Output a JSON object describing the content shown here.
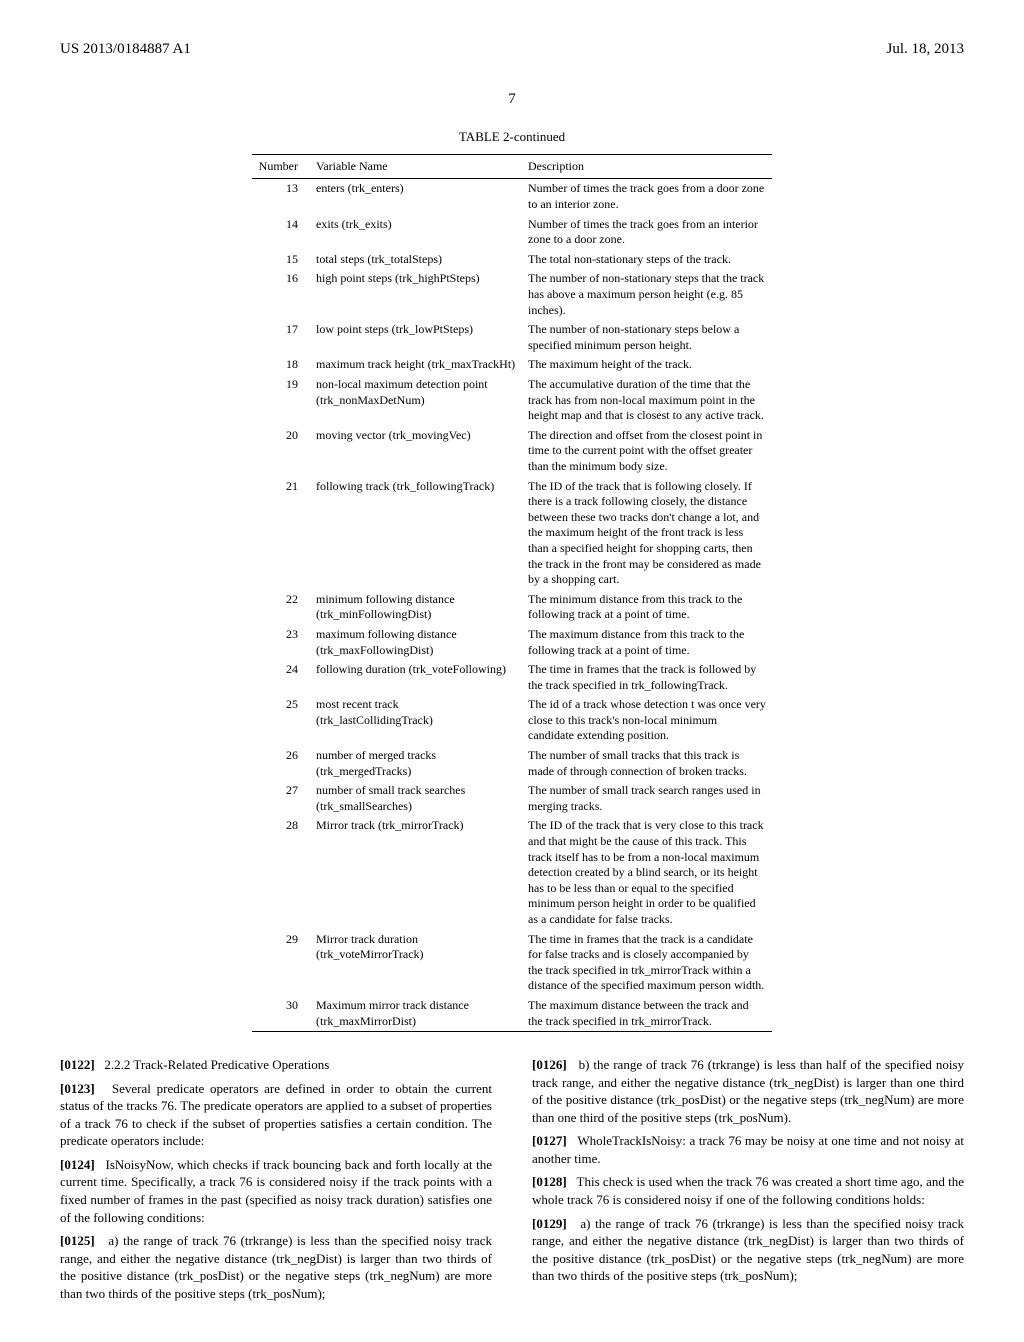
{
  "header": {
    "left": "US 2013/0184887 A1",
    "right": "Jul. 18, 2013"
  },
  "page_number": "7",
  "table": {
    "caption": "TABLE 2-continued",
    "columns": [
      "Number",
      "Variable Name",
      "Description"
    ],
    "rows": [
      {
        "num": "13",
        "var": "enters (trk_enters)",
        "desc": "Number of times the track goes from a door zone to an interior zone."
      },
      {
        "num": "14",
        "var": "exits (trk_exits)",
        "desc": "Number of times the track goes from an interior zone to a door zone."
      },
      {
        "num": "15",
        "var": "total steps (trk_totalSteps)",
        "desc": "The total non-stationary steps of the track."
      },
      {
        "num": "16",
        "var": "high point steps (trk_highPtSteps)",
        "desc": "The number of non-stationary steps that the track has above a maximum person height (e.g. 85 inches)."
      },
      {
        "num": "17",
        "var": "low point steps (trk_lowPtSteps)",
        "desc": "The number of non-stationary steps below a specified minimum person height."
      },
      {
        "num": "18",
        "var": "maximum track height (trk_maxTrackHt)",
        "desc": "The maximum height of the track."
      },
      {
        "num": "19",
        "var": "non-local maximum detection point (trk_nonMaxDetNum)",
        "desc": "The accumulative duration of the time that the track has from non-local maximum point in the height map and that is closest to any active track."
      },
      {
        "num": "20",
        "var": "moving vector (trk_movingVec)",
        "desc": "The direction and offset from the closest point in time to the current point with the offset greater than the minimum body size."
      },
      {
        "num": "21",
        "var": "following track (trk_followingTrack)",
        "desc": "The ID of the track that is following closely. If there is a track following closely, the distance between these two tracks don't change a lot, and the maximum height of the front track is less than a specified height for shopping carts, then the track in the front may be considered as made by a shopping cart."
      },
      {
        "num": "22",
        "var": "minimum following distance (trk_minFollowingDist)",
        "desc": "The minimum distance from this track to the following track at a point of time."
      },
      {
        "num": "23",
        "var": "maximum following distance (trk_maxFollowingDist)",
        "desc": "The maximum distance from this track to the following track at a point of time."
      },
      {
        "num": "24",
        "var": "following duration (trk_voteFollowing)",
        "desc": "The time in frames that the track is followed by the track specified in trk_followingTrack."
      },
      {
        "num": "25",
        "var": "most recent track (trk_lastCollidingTrack)",
        "desc": "The id of a track whose detection t was once very close to this track's non-local minimum candidate extending position."
      },
      {
        "num": "26",
        "var": "number of merged tracks (trk_mergedTracks)",
        "desc": "The number of small tracks that this track is made of through connection of broken tracks."
      },
      {
        "num": "27",
        "var": "number of small track searches (trk_smallSearches)",
        "desc": "The number of small track search ranges used in merging tracks."
      },
      {
        "num": "28",
        "var": "Mirror track (trk_mirrorTrack)",
        "desc": "The ID of the track that is very close to this track and that might be the cause of this track. This track itself has to be from a non-local maximum detection created by a blind search, or its height has to be less than or equal to the specified minimum person height in order to be qualified as a candidate for false tracks."
      },
      {
        "num": "29",
        "var": "Mirror track duration (trk_voteMirrorTrack)",
        "desc": "The time in frames that the track is a candidate for false tracks and is closely accompanied by the track specified in trk_mirrorTrack within a distance of the specified maximum person width."
      },
      {
        "num": "30",
        "var": "Maximum mirror track distance (trk_maxMirrorDist)",
        "desc": "The maximum distance between the track and the track specified in trk_mirrorTrack."
      }
    ]
  },
  "body": {
    "p1_ref": "[0122]",
    "p1_text": "2.2.2 Track-Related Predicative Operations",
    "p2_ref": "[0123]",
    "p2_text": "Several predicate operators are defined in order to obtain the current status of the tracks 76. The predicate operators are applied to a subset of properties of a track 76 to check if the subset of properties satisfies a certain condition. The predicate operators include:",
    "p3_ref": "[0124]",
    "p3_text": "IsNoisyNow, which checks if track bouncing back and forth locally at the current time. Specifically, a track 76 is considered noisy if the track points with a fixed number of frames in the past (specified as noisy track duration) satisfies one of the following conditions:",
    "p4_ref": "[0125]",
    "p4_text": "a) the range of track 76 (trkrange) is less than the specified noisy track range, and either the negative distance (trk_negDist) is larger than two thirds of the positive distance (trk_posDist) or the negative steps (trk_negNum) are more than two thirds of the positive steps (trk_posNum);",
    "p5_ref": "[0126]",
    "p5_text": "b) the range of track 76 (trkrange) is less than half of the specified noisy track range, and either the negative distance (trk_negDist) is larger than one third of the positive distance (trk_posDist) or the negative steps (trk_negNum) are more than one third of the positive steps (trk_posNum).",
    "p6_ref": "[0127]",
    "p6_text": "WholeTrackIsNoisy: a track 76 may be noisy at one time and not noisy at another time.",
    "p7_ref": "[0128]",
    "p7_text": "This check is used when the track 76 was created a short time ago, and the whole track 76 is considered noisy if one of the following conditions holds:",
    "p8_ref": "[0129]",
    "p8_text": "a) the range of track 76 (trkrange) is less than the specified noisy track range, and either the negative distance (trk_negDist) is larger than two thirds of the positive distance (trk_posDist) or the negative steps (trk_negNum) are more than two thirds of the positive steps (trk_posNum);"
  }
}
